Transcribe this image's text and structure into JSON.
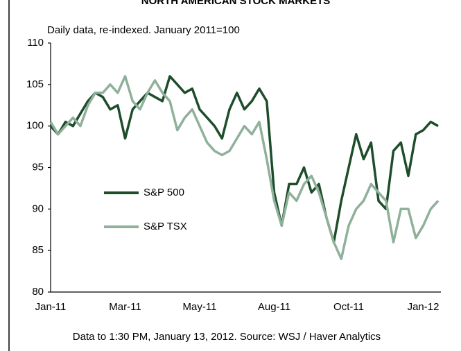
{
  "chart_data": {
    "type": "line",
    "title": "NORTH AMERICAN STOCK MARKETS",
    "subtitle": "Daily data, re-indexed. January 2011=100",
    "note": "Data to 1:30 PM, January 13, 2012. Source: WSJ / Haver Analytics",
    "categories": [
      "Jan-11",
      null,
      null,
      null,
      null,
      null,
      null,
      null,
      null,
      null,
      "Mar-11",
      null,
      null,
      null,
      null,
      null,
      null,
      null,
      null,
      null,
      "May-11",
      null,
      null,
      null,
      null,
      null,
      null,
      null,
      null,
      null,
      "Aug-11",
      null,
      null,
      null,
      null,
      null,
      null,
      null,
      null,
      null,
      "Oct-11",
      null,
      null,
      null,
      null,
      null,
      null,
      null,
      null,
      null,
      "Jan-12",
      null,
      null
    ],
    "series": [
      {
        "name": "S&P 500",
        "color": "#1e4d2b",
        "values": [
          100,
          99,
          100.5,
          100,
          101.5,
          103,
          104,
          103.5,
          102,
          102.5,
          98.5,
          102,
          103,
          104,
          103.5,
          103,
          106,
          105,
          104,
          104.5,
          102,
          101,
          100,
          98.5,
          102,
          104,
          102,
          103,
          104.5,
          103,
          92,
          88,
          93,
          93,
          95,
          92,
          93,
          89,
          86,
          91,
          95,
          99,
          96,
          98,
          91,
          90,
          97,
          98,
          94,
          99,
          99.5,
          100.5,
          100
        ]
      },
      {
        "name": "S&P TSX",
        "color": "#8fb09a",
        "values": [
          100.5,
          99,
          100,
          101,
          100,
          102.5,
          104,
          104,
          105,
          104,
          106,
          103,
          102,
          104,
          105.5,
          104,
          103,
          99.5,
          101,
          102,
          100,
          98,
          97,
          96.5,
          97,
          98.5,
          100,
          99,
          100.5,
          96,
          91,
          88,
          92,
          91,
          93,
          94,
          92,
          89,
          86,
          84,
          88,
          90,
          91,
          93,
          92,
          91,
          86,
          90,
          90,
          86.5,
          88,
          90,
          91
        ]
      }
    ],
    "ylim": [
      80,
      110
    ],
    "yticks": [
      80,
      85,
      90,
      95,
      100,
      105,
      110
    ],
    "grid": false,
    "legend": "left"
  }
}
